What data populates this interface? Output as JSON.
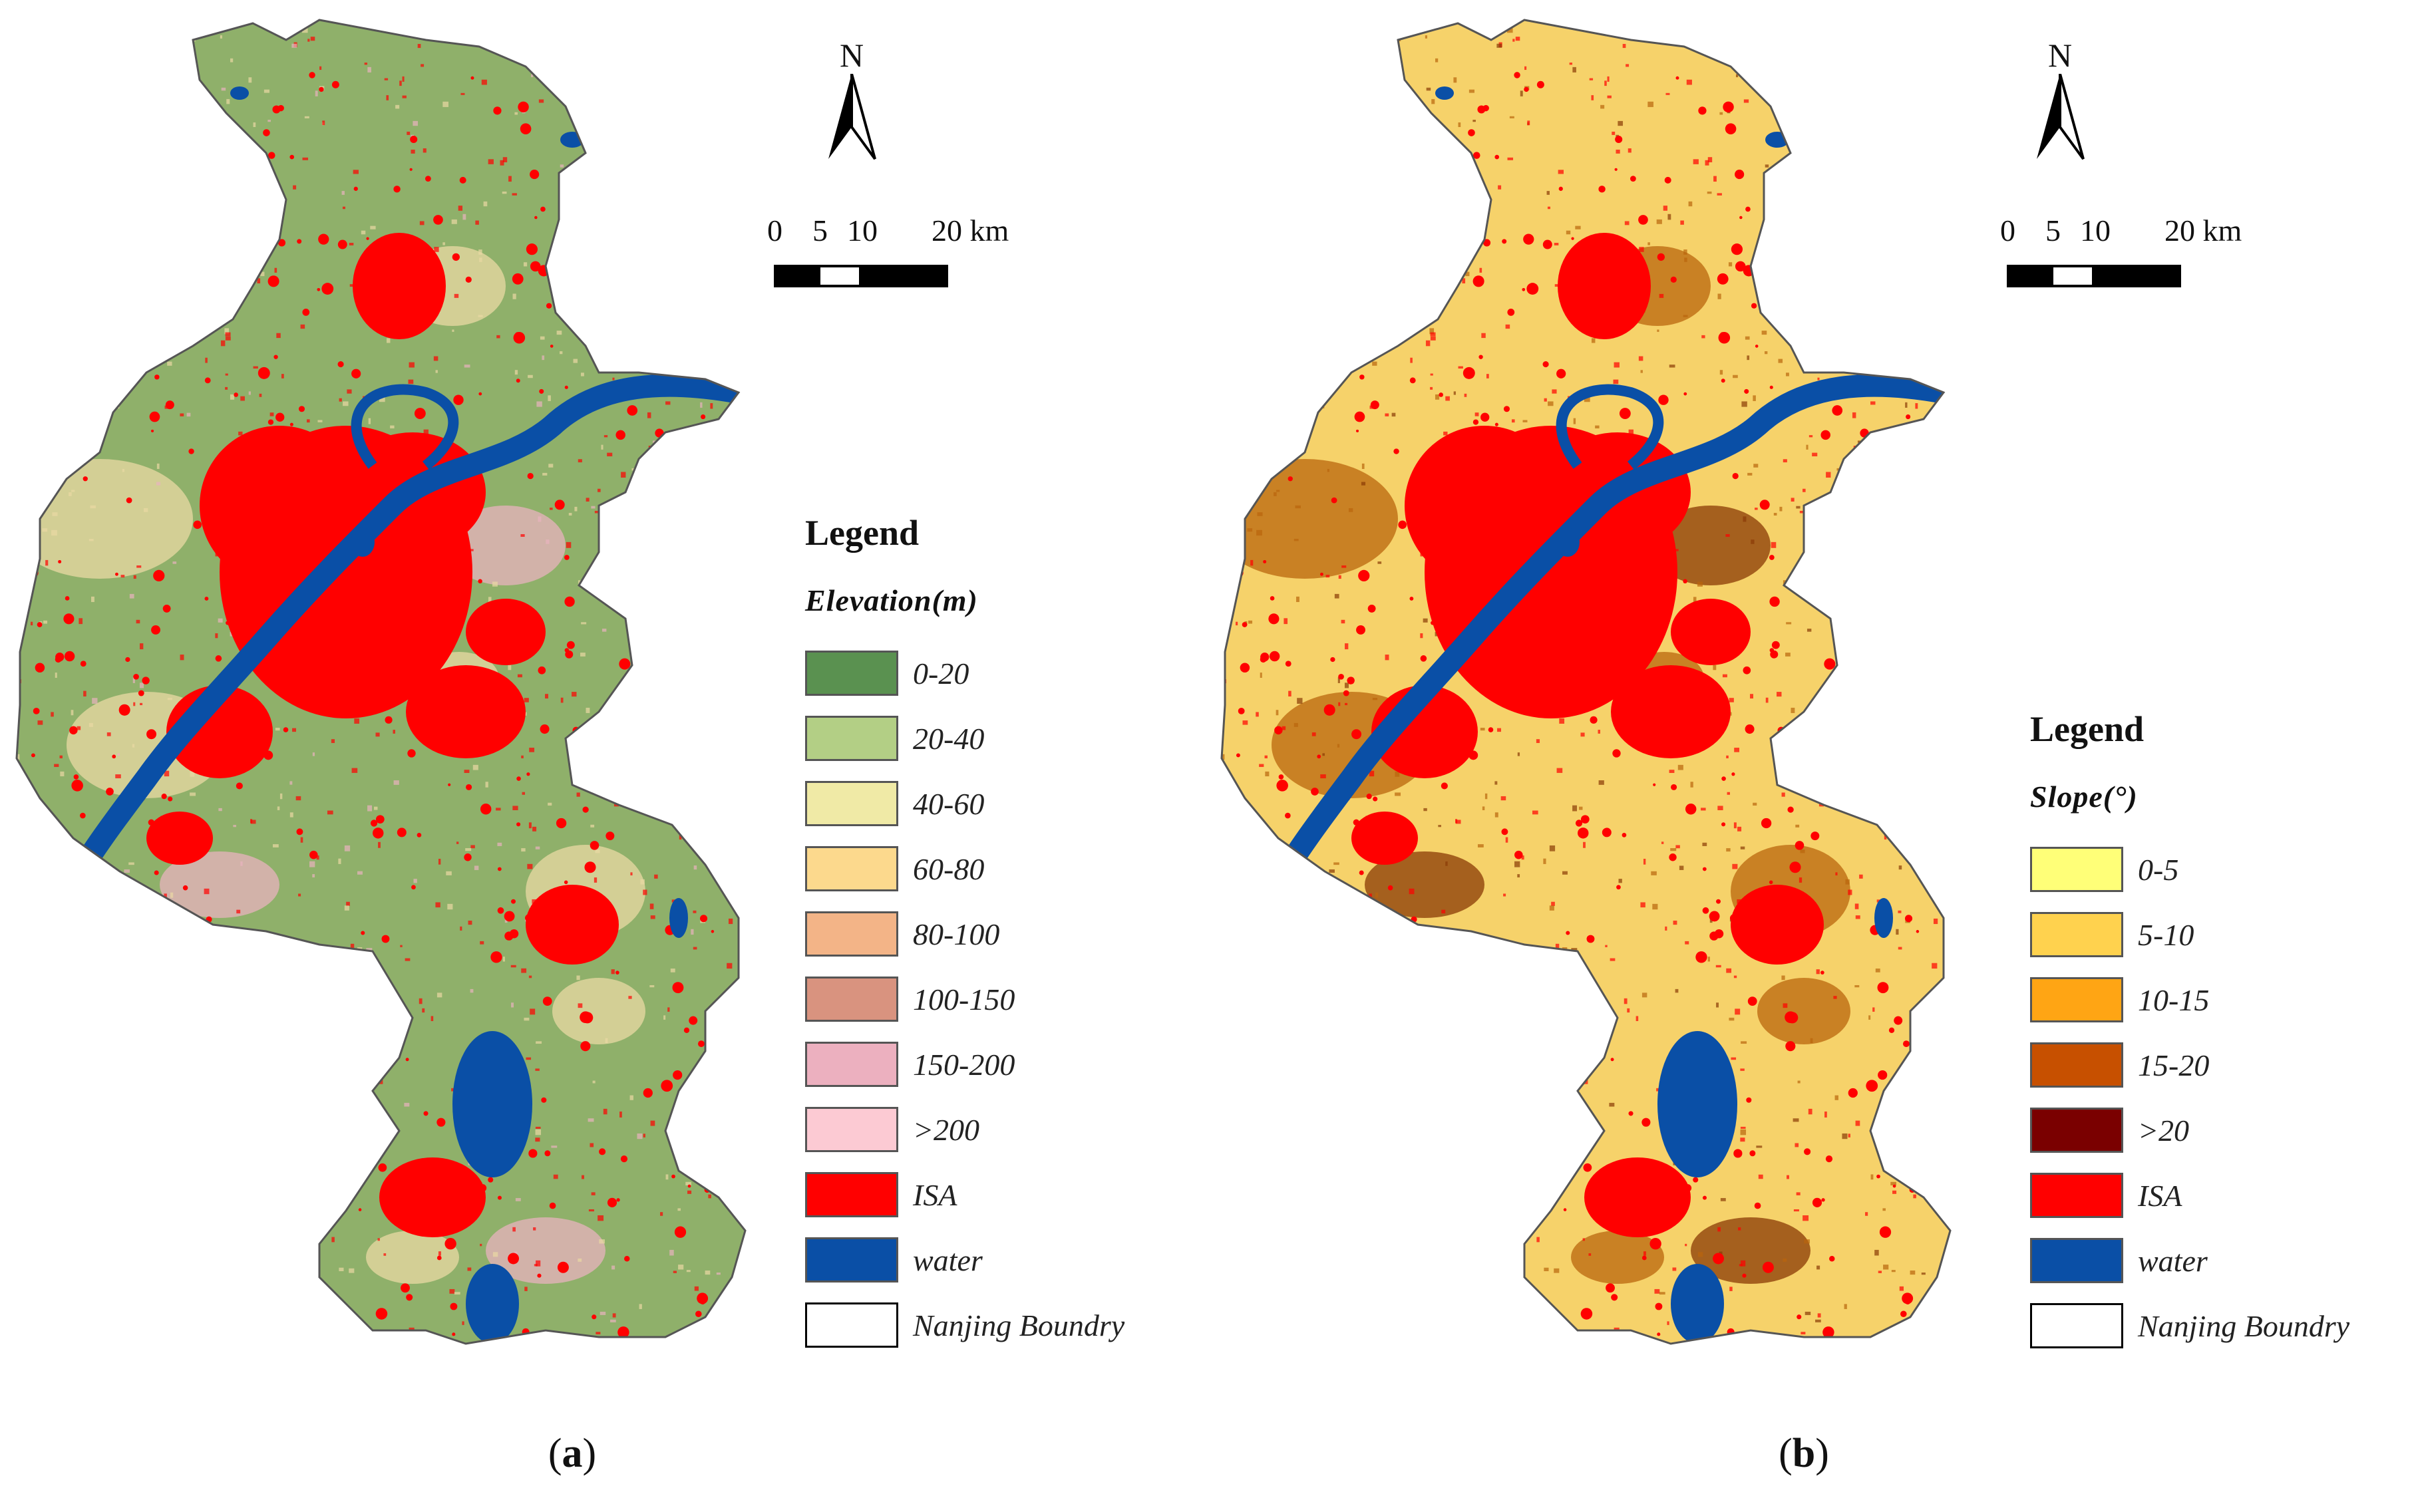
{
  "panel_a": {
    "north_letter": "N",
    "scale_labels": [
      "0",
      "5",
      "10",
      "20 km"
    ],
    "legend_title": "Legend",
    "legend_subtitle": "Elevation(m)",
    "legend_items": [
      {
        "label": "0-20",
        "color": "#5a9150"
      },
      {
        "label": "20-40",
        "color": "#b3cf85"
      },
      {
        "label": "40-60",
        "color": "#f0eaa6"
      },
      {
        "label": "60-80",
        "color": "#fcd98d"
      },
      {
        "label": "80-100",
        "color": "#f3b487"
      },
      {
        "label": "100-150",
        "color": "#d9937f"
      },
      {
        "label": "150-200",
        "color": "#ecb0bf"
      },
      {
        "label": ">200",
        "color": "#fccad3"
      },
      {
        "label": "ISA",
        "color": "#ff0000"
      },
      {
        "label": "water",
        "color": "#0a4fa6"
      },
      {
        "label": "Nanjing Boundry",
        "color": "#ffffff"
      }
    ],
    "caption_open": "(",
    "caption_letter": "a",
    "caption_close": ")",
    "map_colors": {
      "base": "#8fb06a",
      "ridge": "#e9d9a4",
      "hill": "#e8b3bf",
      "isa": "#ff0000",
      "water": "#0a4fa6"
    }
  },
  "panel_b": {
    "north_letter": "N",
    "scale_labels": [
      "0",
      "5",
      "10",
      "20 km"
    ],
    "legend_title": "Legend",
    "legend_subtitle": "Slope(°)",
    "legend_items": [
      {
        "label": "0-5",
        "color": "#ffff78"
      },
      {
        "label": "5-10",
        "color": "#ffd24e"
      },
      {
        "label": "10-15",
        "color": "#ffa514"
      },
      {
        "label": "15-20",
        "color": "#c75000"
      },
      {
        "label": ">20",
        "color": "#7a0000"
      },
      {
        "label": "ISA",
        "color": "#ff0000"
      },
      {
        "label": "water",
        "color": "#0a4fa6"
      },
      {
        "label": "Nanjing Boundry",
        "color": "#ffffff"
      }
    ],
    "caption_open": "(",
    "caption_letter": "b",
    "caption_close": ")",
    "map_colors": {
      "base": "#f6d26a",
      "ridge": "#b9650d",
      "hill": "#8a3a05",
      "isa": "#ff0000",
      "water": "#0a4fa6"
    }
  }
}
